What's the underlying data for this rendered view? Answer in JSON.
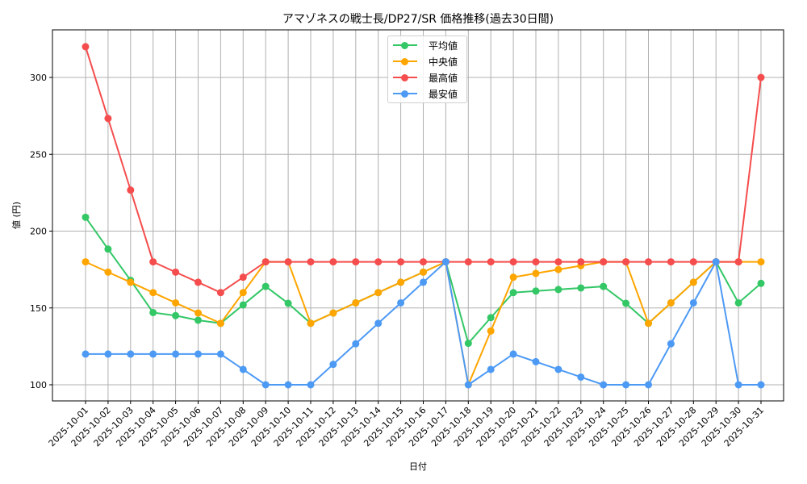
{
  "chart_data": {
    "type": "line",
    "title": "アマゾネスの戦士長/DP27/SR 価格推移(過去30日間)",
    "xlabel": "日付",
    "ylabel": "値 (円)",
    "ylim": [
      90,
      330
    ],
    "yticks": [
      100,
      150,
      200,
      250,
      300
    ],
    "grid": true,
    "legend_position": "upper center",
    "x": [
      "2025-10-01",
      "2025-10-02",
      "2025-10-03",
      "2025-10-04",
      "2025-10-05",
      "2025-10-06",
      "2025-10-07",
      "2025-10-08",
      "2025-10-09",
      "2025-10-10",
      "2025-10-11",
      "2025-10-12",
      "2025-10-13",
      "2025-10-14",
      "2025-10-15",
      "2025-10-16",
      "2025-10-17",
      "2025-10-18",
      "2025-10-19",
      "2025-10-20",
      "2025-10-21",
      "2025-10-22",
      "2025-10-23",
      "2025-10-24",
      "2025-10-25",
      "2025-10-26",
      "2025-10-27",
      "2025-10-28",
      "2025-10-29",
      "2025-10-30",
      "2025-10-31"
    ],
    "series": [
      {
        "name": "平均値",
        "color": "#33c766",
        "values": [
          209,
          188.3,
          168,
          147,
          145,
          142,
          140,
          152,
          164,
          153,
          140,
          146.7,
          153.3,
          160,
          166.7,
          173.3,
          180,
          127,
          143.7,
          160,
          161,
          162,
          163,
          164,
          153,
          140,
          153.3,
          166.7,
          180,
          153.3,
          166
        ]
      },
      {
        "name": "中央値",
        "color": "#ffa500",
        "values": [
          180,
          173.3,
          166.7,
          160,
          153.3,
          146.7,
          140,
          160,
          180,
          180,
          140,
          146.7,
          153.3,
          160,
          166.7,
          173.3,
          180,
          100,
          135,
          170,
          172.5,
          175,
          177.5,
          180,
          180,
          140,
          153.3,
          166.7,
          180,
          180,
          180
        ]
      },
      {
        "name": "最高値",
        "color": "#f54d4d",
        "values": [
          320,
          273.3,
          226.7,
          180,
          173.3,
          166.7,
          160,
          170,
          180,
          180,
          180,
          180,
          180,
          180,
          180,
          180,
          180,
          180,
          180,
          180,
          180,
          180,
          180,
          180,
          180,
          180,
          180,
          180,
          180,
          180,
          300
        ]
      },
      {
        "name": "最安値",
        "color": "#4d9af5",
        "values": [
          120,
          120,
          120,
          120,
          120,
          120,
          120,
          110,
          100,
          100,
          100,
          113.3,
          126.7,
          140,
          153.3,
          166.7,
          180,
          100,
          110,
          120,
          115,
          110,
          105,
          100,
          100,
          100,
          126.7,
          153.3,
          180,
          100,
          100
        ]
      }
    ]
  }
}
